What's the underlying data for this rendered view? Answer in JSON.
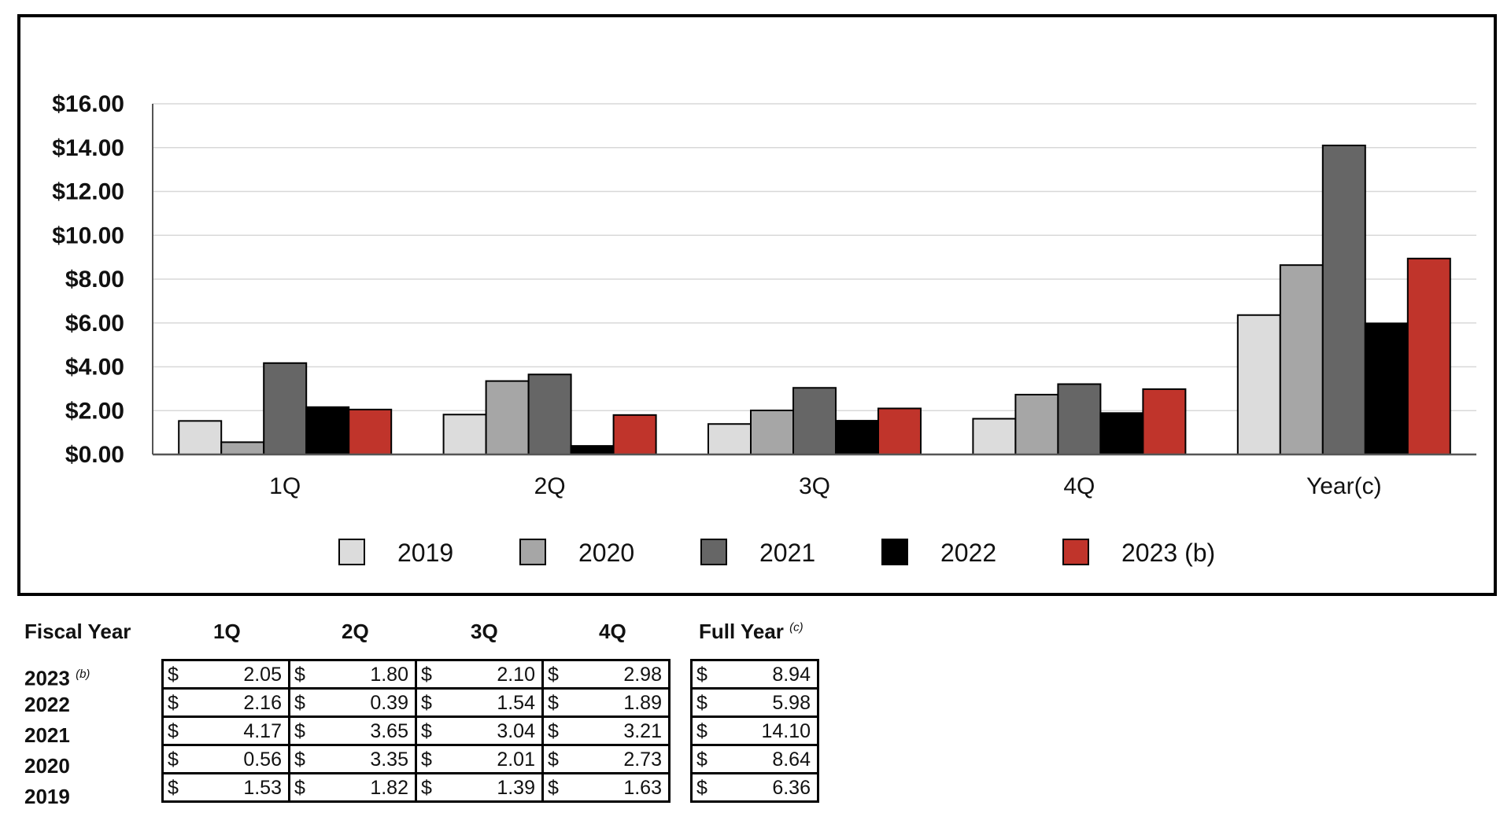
{
  "chart_data": {
    "type": "bar",
    "categories": [
      "1Q",
      "2Q",
      "3Q",
      "4Q",
      "Year(c)"
    ],
    "series": [
      {
        "name": "2019",
        "values": [
          1.53,
          1.82,
          1.39,
          1.63,
          6.36
        ],
        "color": "#dcdcdc"
      },
      {
        "name": "2020",
        "values": [
          0.56,
          3.35,
          2.01,
          2.73,
          8.64
        ],
        "color": "#a6a6a6"
      },
      {
        "name": "2021",
        "values": [
          4.17,
          3.65,
          3.04,
          3.21,
          14.1
        ],
        "color": "#666666"
      },
      {
        "name": "2022",
        "values": [
          2.16,
          0.39,
          1.54,
          1.89,
          5.98
        ],
        "color": "#000000"
      },
      {
        "name": "2023 (b)",
        "values": [
          2.05,
          1.8,
          2.1,
          2.98,
          8.94
        ],
        "color": "#c0342b"
      }
    ],
    "yticks": [
      "$0.00",
      "$2.00",
      "$4.00",
      "$6.00",
      "$8.00",
      "$10.00",
      "$12.00",
      "$14.00",
      "$16.00"
    ],
    "ylim": [
      0,
      16
    ],
    "grid": true,
    "legend_position": "bottom"
  },
  "table": {
    "headers": {
      "fiscal_year": "Fiscal Year",
      "q1": "1Q",
      "q2": "2Q",
      "q3": "3Q",
      "q4": "4Q",
      "full_year": "Full Year",
      "full_year_note": "(c)"
    },
    "currency": "$",
    "rows": [
      {
        "year": "2023",
        "note": "(b)",
        "q": [
          "2.05",
          "1.80",
          "2.10",
          "2.98"
        ],
        "full": "8.94"
      },
      {
        "year": "2022",
        "note": "",
        "q": [
          "2.16",
          "0.39",
          "1.54",
          "1.89"
        ],
        "full": "5.98"
      },
      {
        "year": "2021",
        "note": "",
        "q": [
          "4.17",
          "3.65",
          "3.04",
          "3.21"
        ],
        "full": "14.10"
      },
      {
        "year": "2020",
        "note": "",
        "q": [
          "0.56",
          "3.35",
          "2.01",
          "2.73"
        ],
        "full": "8.64"
      },
      {
        "year": "2019",
        "note": "",
        "q": [
          "1.53",
          "1.82",
          "1.39",
          "1.63"
        ],
        "full": "6.36"
      }
    ]
  }
}
